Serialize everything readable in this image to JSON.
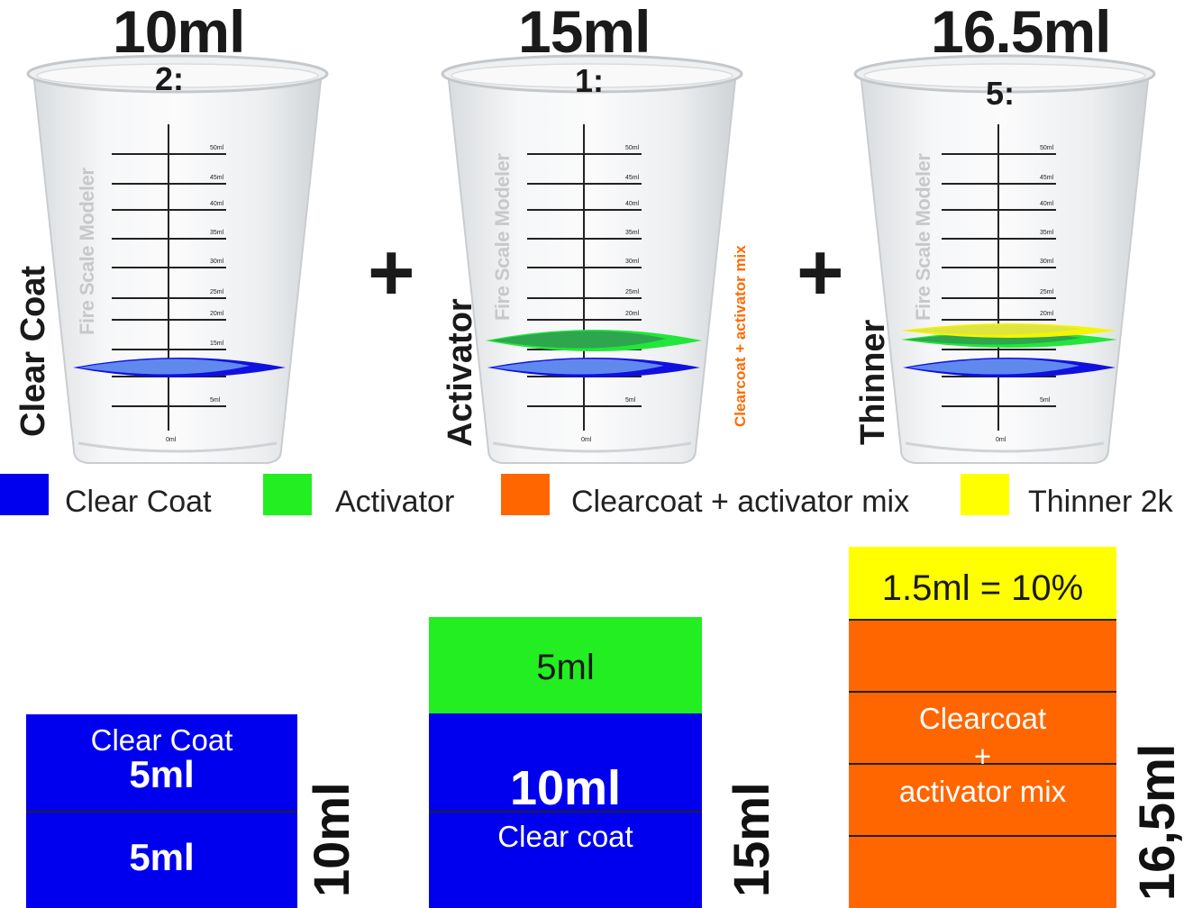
{
  "cups": [
    {
      "volume": "10ml",
      "ratio": "2:",
      "label": "Clear Coat",
      "watermark": "Fire Scale Modeler"
    },
    {
      "volume": "15ml",
      "ratio": "1:",
      "label": "Activator",
      "watermark": "Fire Scale Modeler",
      "side_label": "Clearcoat + activator mix"
    },
    {
      "volume": "16.5ml",
      "ratio": "5:",
      "label": "Thinner",
      "watermark": "Fire Scale Modeler"
    }
  ],
  "plus_signs": [
    "+",
    "+"
  ],
  "scale_marks": [
    "50ml",
    "45ml",
    "40ml",
    "35ml",
    "30ml",
    "25ml",
    "20ml",
    "15ml",
    "10ml",
    "5ml",
    "0ml"
  ],
  "legend": [
    {
      "label": "Clear Coat",
      "color": "#0000ee"
    },
    {
      "label": "Activator",
      "color": "#22ee22"
    },
    {
      "label": "Clearcoat + activator mix",
      "color": "#ff6600"
    },
    {
      "label": "Thinner 2k",
      "color": "#ffff00"
    }
  ],
  "stacks": [
    {
      "total": "10ml",
      "top_label": "Clear Coat",
      "top_value": "5ml",
      "bottom_value": "5ml"
    },
    {
      "total": "15ml",
      "top_value": "5ml",
      "bottom_value": "10ml",
      "bottom_label": "Clear coat"
    },
    {
      "total": "16,5ml",
      "top_value": "1.5ml = 10%",
      "mix_line1": "Clearcoat",
      "mix_line2": "+",
      "mix_line3": "activator mix"
    }
  ]
}
